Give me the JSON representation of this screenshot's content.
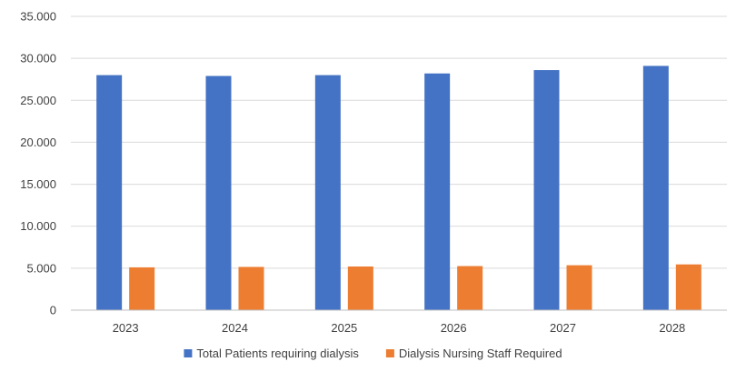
{
  "chart_data": {
    "type": "bar",
    "categories": [
      "2023",
      "2024",
      "2025",
      "2026",
      "2027",
      "2028"
    ],
    "series": [
      {
        "name": "Total Patients requiring dialysis",
        "color": "#4472c4",
        "values": [
          28000,
          27900,
          28000,
          28200,
          28600,
          29100
        ]
      },
      {
        "name": "Dialysis Nursing Staff Required",
        "color": "#ed7d31",
        "values": [
          5100,
          5150,
          5200,
          5250,
          5350,
          5450
        ]
      }
    ],
    "ylim": [
      0,
      35000
    ],
    "yticks": [
      {
        "value": 0,
        "label": "0"
      },
      {
        "value": 5000,
        "label": "5.000"
      },
      {
        "value": 10000,
        "label": "10.000"
      },
      {
        "value": 15000,
        "label": "15.000"
      },
      {
        "value": 20000,
        "label": "20.000"
      },
      {
        "value": 25000,
        "label": "25.000"
      },
      {
        "value": 30000,
        "label": "30.000"
      },
      {
        "value": 35000,
        "label": "35.000"
      }
    ],
    "grid": true,
    "legend_position": "bottom"
  }
}
